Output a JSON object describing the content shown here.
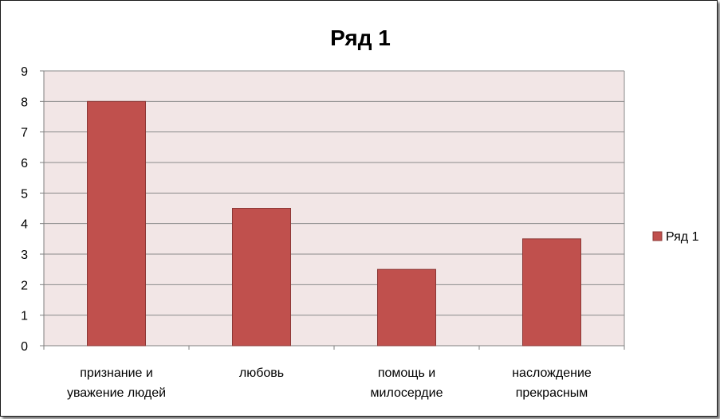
{
  "chart_data": {
    "type": "bar",
    "title": "Ряд 1",
    "categories": [
      [
        "признание и",
        "уважение людей"
      ],
      [
        "любовь"
      ],
      [
        "помощь и",
        "милосердие"
      ],
      [
        "наслождение",
        "прекрасным"
      ]
    ],
    "series": [
      {
        "name": "Ряд 1",
        "values": [
          8,
          4.5,
          2.5,
          3.5
        ],
        "color": "#c0504d"
      }
    ],
    "ylim": [
      0,
      9
    ],
    "yticks": [
      0,
      1,
      2,
      3,
      4,
      5,
      6,
      7,
      8,
      9
    ],
    "grid": true,
    "legend_position": "right",
    "plot_background": "#f2e6e6"
  }
}
